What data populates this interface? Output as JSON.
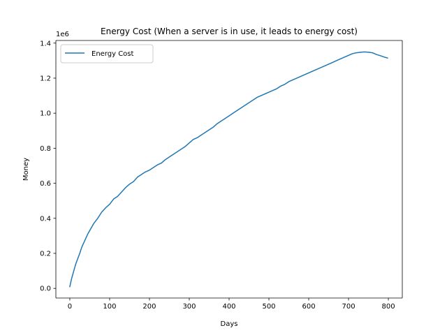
{
  "chart_data": {
    "type": "line",
    "title": "Energy Cost (When a server is in use, it leads to energy cost)",
    "xlabel": "Days",
    "ylabel": "Money",
    "offset_text": "1e6",
    "xlim": [
      -35,
      835
    ],
    "ylim": [
      -0.055,
      1.415
    ],
    "xticks": [
      0,
      100,
      200,
      300,
      400,
      500,
      600,
      700,
      800
    ],
    "yticks": [
      0.0,
      0.2,
      0.4,
      0.6,
      0.8,
      1.0,
      1.2,
      1.4
    ],
    "ytick_labels": [
      "0.0",
      "0.2",
      "0.4",
      "0.6",
      "0.8",
      "1.0",
      "1.2",
      "1.4"
    ],
    "grid": false,
    "legend_position": "upper left",
    "series": [
      {
        "name": "Energy Cost",
        "color": "#1f77b4",
        "x": [
          0,
          5,
          10,
          15,
          20,
          25,
          30,
          35,
          40,
          45,
          50,
          60,
          70,
          80,
          90,
          100,
          110,
          120,
          130,
          140,
          150,
          160,
          170,
          180,
          190,
          200,
          210,
          220,
          230,
          240,
          250,
          260,
          270,
          280,
          290,
          300,
          310,
          320,
          330,
          340,
          350,
          360,
          370,
          380,
          390,
          400,
          410,
          420,
          430,
          440,
          450,
          460,
          470,
          480,
          490,
          500,
          510,
          520,
          530,
          540,
          550,
          560,
          570,
          580,
          590,
          600,
          610,
          620,
          630,
          640,
          650,
          660,
          670,
          680,
          690,
          700,
          710,
          720,
          730,
          740,
          750,
          760,
          770,
          780,
          790,
          798
        ],
        "y": [
          0.01,
          0.06,
          0.1,
          0.14,
          0.17,
          0.2,
          0.235,
          0.26,
          0.285,
          0.31,
          0.33,
          0.37,
          0.4,
          0.435,
          0.46,
          0.48,
          0.51,
          0.525,
          0.55,
          0.575,
          0.595,
          0.61,
          0.635,
          0.65,
          0.665,
          0.675,
          0.69,
          0.705,
          0.715,
          0.735,
          0.75,
          0.765,
          0.78,
          0.795,
          0.81,
          0.83,
          0.85,
          0.86,
          0.875,
          0.89,
          0.905,
          0.92,
          0.94,
          0.955,
          0.97,
          0.985,
          1.0,
          1.015,
          1.03,
          1.045,
          1.06,
          1.075,
          1.09,
          1.1,
          1.11,
          1.12,
          1.13,
          1.14,
          1.155,
          1.165,
          1.18,
          1.19,
          1.2,
          1.21,
          1.22,
          1.23,
          1.24,
          1.25,
          1.26,
          1.27,
          1.28,
          1.29,
          1.3,
          1.31,
          1.32,
          1.33,
          1.34,
          1.345,
          1.348,
          1.35,
          1.348,
          1.345,
          1.335,
          1.328,
          1.32,
          1.315
        ]
      }
    ]
  }
}
